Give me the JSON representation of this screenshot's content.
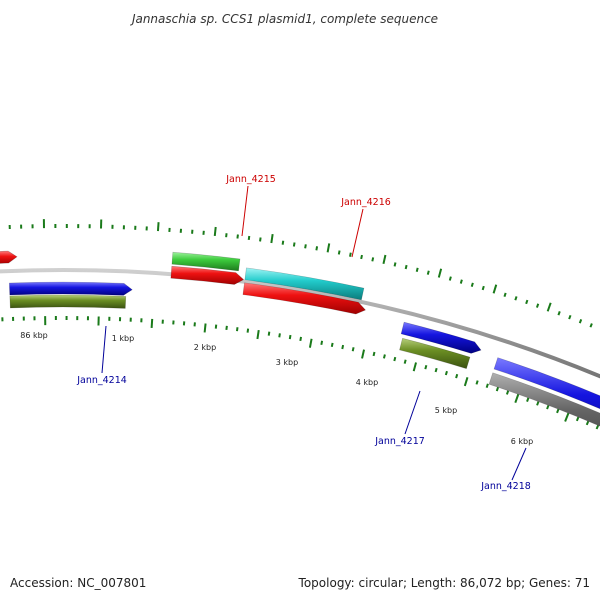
{
  "title": "Jannaschia sp. CCS1 plasmid1, complete sequence",
  "footer": {
    "accession": "Accession: NC_007801",
    "summary": "Topology: circular; Length: 86,072 bp; Genes: 71"
  },
  "ticks": [
    "86 kbp",
    "1 kbp",
    "2 kbp",
    "3 kbp",
    "4 kbp",
    "5 kbp",
    "6 kbp"
  ],
  "genes": {
    "labeled": [
      "Jann_4215",
      "Jann_4216",
      "Jann_4214",
      "Jann_4217",
      "Jann_4218"
    ]
  },
  "colors": {
    "forward_label": "#cc0000",
    "reverse_label": "#000099",
    "backbone": "#8a8a8a",
    "tick": "#1a7a1a",
    "gene_red": "#ee1111",
    "gene_blue": "#1515e0",
    "gene_green": "#3dcc3d",
    "gene_cyan": "#22cccc",
    "gene_olive": "#6b8e23",
    "gene_gray": "#666666"
  }
}
